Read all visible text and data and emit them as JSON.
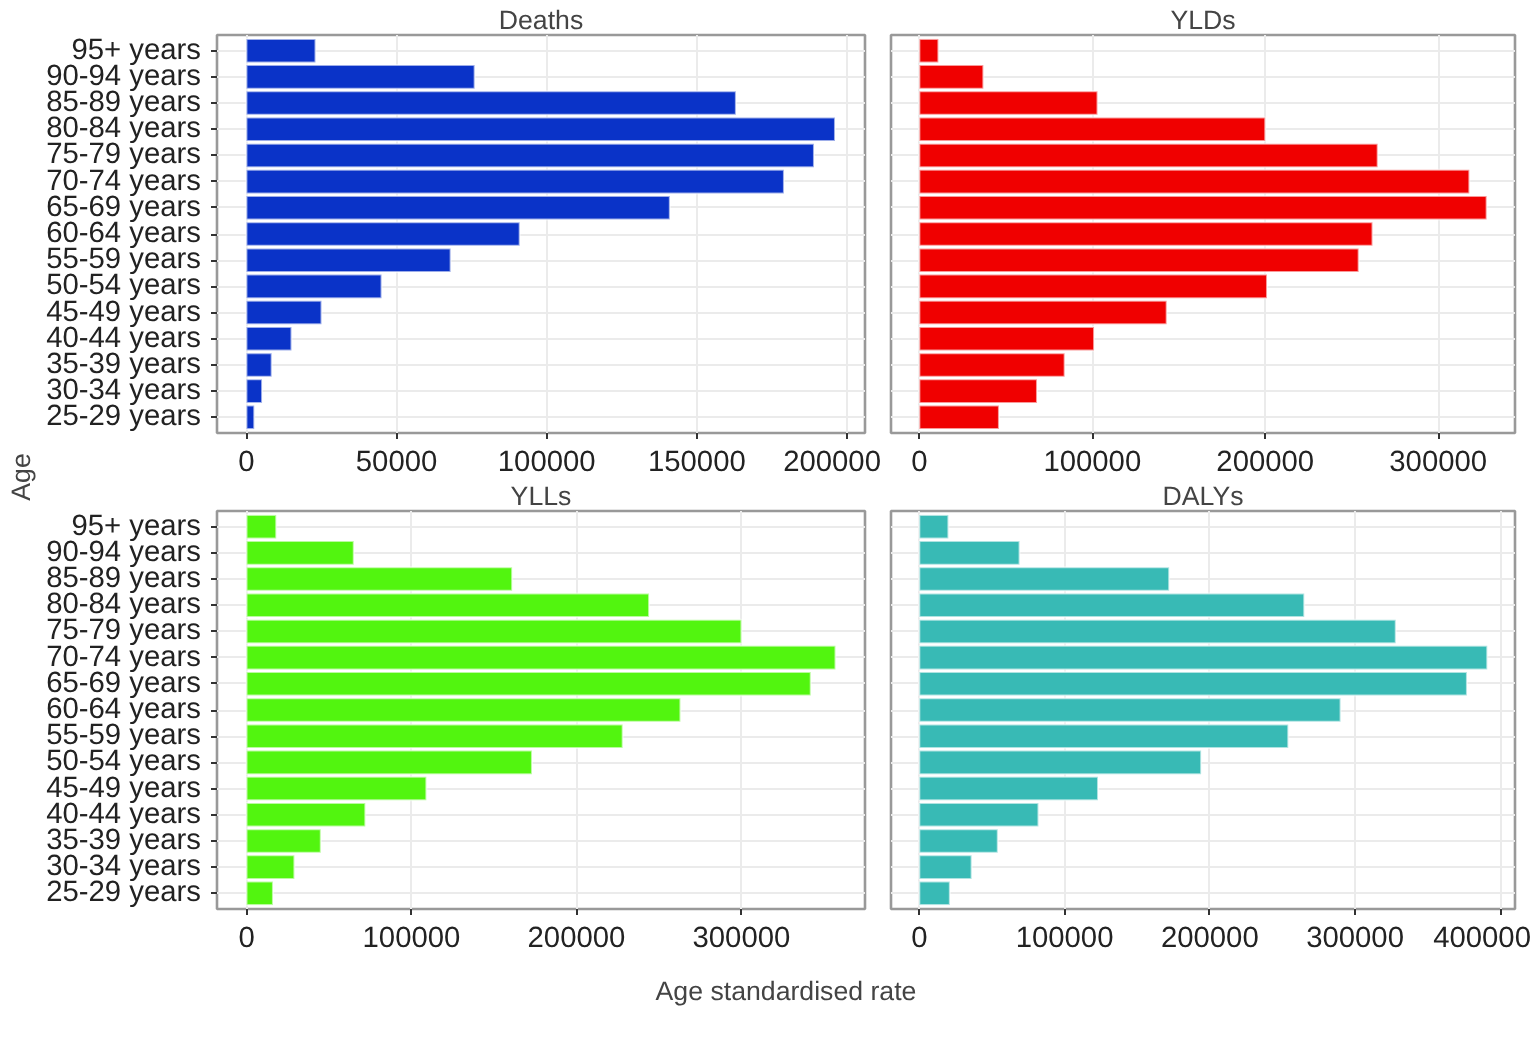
{
  "chart_data": [
    {
      "type": "bar",
      "orientation": "horizontal",
      "title": "Deaths",
      "ylabel": "Age",
      "categories": [
        "95+ years",
        "90-94 years",
        "85-89 years",
        "80-84 years",
        "75-79 years",
        "70-74 years",
        "65-69 years",
        "60-64 years",
        "55-59 years",
        "50-54 years",
        "45-49 years",
        "40-44 years",
        "35-39 years",
        "30-34 years",
        "25-29 years"
      ],
      "values": [
        23000,
        76000,
        163000,
        196000,
        189000,
        179000,
        141000,
        91000,
        68000,
        45000,
        25000,
        15000,
        8400,
        5200,
        2600
      ],
      "color": "#0a33c8",
      "xlim": [
        -9800,
        206000
      ],
      "xticks": [
        0,
        50000,
        100000,
        150000,
        200000
      ],
      "grid": true
    },
    {
      "type": "bar",
      "orientation": "horizontal",
      "title": "YLDs",
      "values": [
        11000,
        37000,
        103000,
        200000,
        265000,
        318000,
        328000,
        262000,
        254000,
        201000,
        143000,
        101000,
        84000,
        68000,
        46000
      ],
      "color": "#f00000",
      "xlim": [
        -16400,
        344400
      ],
      "xticks": [
        0,
        100000,
        200000,
        300000
      ],
      "grid": true,
      "tick_labels": "x"
    },
    {
      "type": "bar",
      "orientation": "horizontal",
      "title": "YLLs",
      "xlabel": "Age standardised rate",
      "categories": [
        "95+ years",
        "90-94 years",
        "85-89 years",
        "80-84 years",
        "75-79 years",
        "70-74 years",
        "65-69 years",
        "60-64 years",
        "55-59 years",
        "50-54 years",
        "45-49 years",
        "40-44 years",
        "35-39 years",
        "30-34 years",
        "25-29 years"
      ],
      "values": [
        18000,
        65000,
        161000,
        244000,
        300000,
        357000,
        342000,
        263000,
        228000,
        173000,
        109000,
        72000,
        45000,
        29000,
        16000
      ],
      "color": "#52f50f",
      "xlim": [
        -17900,
        374900
      ],
      "xticks": [
        0,
        100000,
        200000,
        300000
      ],
      "grid": true
    },
    {
      "type": "bar",
      "orientation": "horizontal",
      "title": "DALYs",
      "values": [
        20000,
        69000,
        172000,
        265000,
        328000,
        391000,
        377000,
        290000,
        254000,
        194000,
        123000,
        82000,
        54000,
        36000,
        21000
      ],
      "color": "#38bab5",
      "xlim": [
        -19500,
        410100
      ],
      "xticks": [
        0,
        100000,
        200000,
        300000,
        400000
      ],
      "grid": true,
      "tick_labels": "x"
    }
  ]
}
